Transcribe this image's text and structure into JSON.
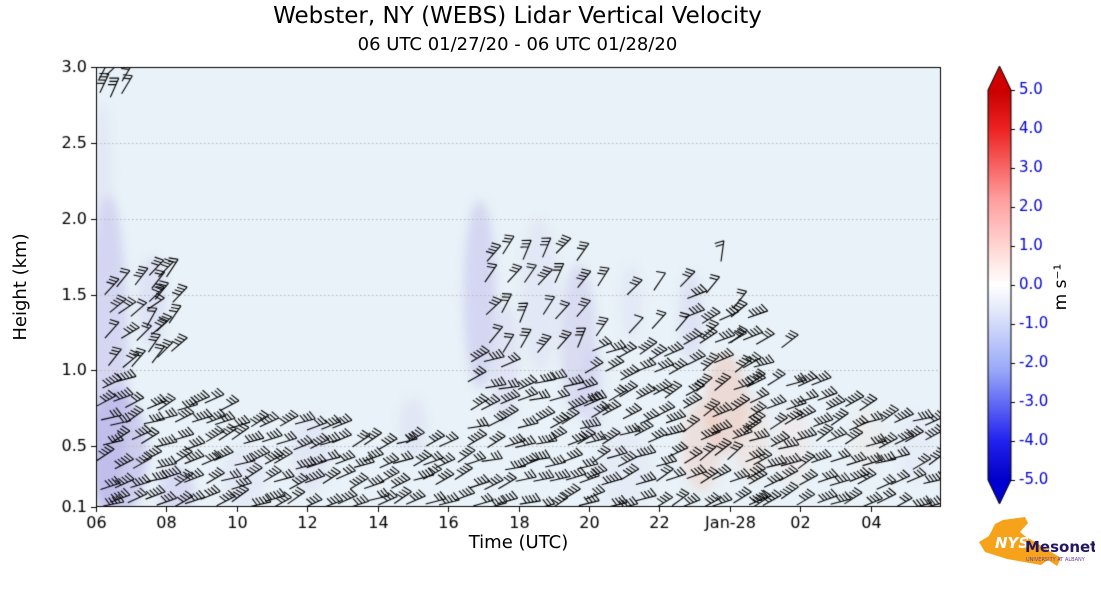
{
  "title": "Webster, NY (WEBS) Lidar Vertical Velocity",
  "subtitle": "06 UTC 01/27/20 - 06 UTC 01/28/20",
  "colors": {
    "figure_bg": "#ffffff",
    "plot_bg": "#e9f2f8",
    "grid": "#b9b9b9",
    "barb": "#000000",
    "axis": "#000000"
  },
  "chart_data": {
    "type": "heatmap",
    "field_description": "Lidar vertical velocity time-height shading (mostly between -1 and +1 m s⁻¹) with overlaid horizontal wind barbs below ~1-2 km",
    "xlabel": "Time (UTC)",
    "ylabel": "Height (km)",
    "x_ticks": [
      "06",
      "08",
      "10",
      "12",
      "14",
      "16",
      "18",
      "20",
      "22",
      "Jan-28",
      "02",
      "04"
    ],
    "x_tick_hours": [
      6,
      8,
      10,
      12,
      14,
      16,
      18,
      20,
      22,
      24,
      26,
      28
    ],
    "x_range_hours": [
      6,
      30
    ],
    "y_ticks": [
      "0.1",
      "0.5",
      "1.0",
      "1.5",
      "2.0",
      "2.5",
      "3.0"
    ],
    "y_tick_values": [
      0.1,
      0.5,
      1.0,
      1.5,
      2.0,
      2.5,
      3.0
    ],
    "ylim": [
      0.1,
      3.0
    ],
    "grid": "dotted horizontal lines at height ticks",
    "colorbar": {
      "label": "m s⁻¹",
      "ticks": [
        "5.0",
        "4.0",
        "3.0",
        "2.0",
        "1.0",
        "0.0",
        "-1.0",
        "-2.0",
        "-3.0",
        "-4.0",
        "-5.0"
      ],
      "tick_values": [
        5,
        4,
        3,
        2,
        1,
        0,
        -1,
        -2,
        -3,
        -4,
        -5
      ],
      "range": [
        -5.0,
        5.0
      ],
      "extend": "both",
      "arrow_top": "#d10000",
      "arrow_bottom": "#0000d1",
      "gradient": [
        [
          0,
          "#c80000"
        ],
        [
          0.1,
          "#ee2222"
        ],
        [
          0.28,
          "#ff9e9e"
        ],
        [
          0.44,
          "#ffe8e4"
        ],
        [
          0.5,
          "#ffffff"
        ],
        [
          0.56,
          "#e6ebfb"
        ],
        [
          0.72,
          "#98a8f8"
        ],
        [
          0.9,
          "#2222ee"
        ],
        [
          1,
          "#0000c8"
        ]
      ]
    },
    "shading_patches": [
      {
        "t": 6.35,
        "h": 1.1,
        "rt": 0.55,
        "rh": 1.05,
        "c": "#b7afe8",
        "a": 0.4
      },
      {
        "t": 6.2,
        "h": 2.2,
        "rt": 0.25,
        "rh": 0.55,
        "c": "#d3cff2",
        "a": 0.3
      },
      {
        "t": 6.6,
        "h": 0.45,
        "rt": 0.85,
        "rh": 0.42,
        "c": "#a8a0e2",
        "a": 0.45
      },
      {
        "t": 7.6,
        "h": 1.45,
        "rt": 0.4,
        "rh": 0.3,
        "c": "#c8c2ee",
        "a": 0.32
      },
      {
        "t": 8.3,
        "h": 0.2,
        "rt": 0.5,
        "rh": 0.16,
        "c": "#b7afe8",
        "a": 0.35
      },
      {
        "t": 10.2,
        "h": 0.3,
        "rt": 0.6,
        "rh": 0.2,
        "c": "#d8d4f3",
        "a": 0.28
      },
      {
        "t": 12.1,
        "h": 0.45,
        "rt": 0.55,
        "rh": 0.25,
        "c": "#d1cdf1",
        "a": 0.28
      },
      {
        "t": 15.0,
        "h": 0.62,
        "rt": 0.4,
        "rh": 0.2,
        "c": "#d1cdf1",
        "a": 0.28
      },
      {
        "t": 16.9,
        "h": 1.5,
        "rt": 0.45,
        "rh": 0.62,
        "c": "#b7afe8",
        "a": 0.4
      },
      {
        "t": 17.6,
        "h": 1.05,
        "rt": 0.4,
        "rh": 0.4,
        "c": "#cdc8f0",
        "a": 0.32
      },
      {
        "t": 18.6,
        "h": 1.5,
        "rt": 0.55,
        "rh": 0.5,
        "c": "#d3cff2",
        "a": 0.28
      },
      {
        "t": 19.7,
        "h": 1.2,
        "rt": 0.5,
        "rh": 0.5,
        "c": "#beb7ea",
        "a": 0.36
      },
      {
        "t": 20.1,
        "h": 0.85,
        "rt": 0.3,
        "rh": 0.3,
        "c": "#c8c2ee",
        "a": 0.32
      },
      {
        "t": 21.2,
        "h": 1.45,
        "rt": 0.3,
        "rh": 0.25,
        "c": "#d8d4f3",
        "a": 0.28
      },
      {
        "t": 22.9,
        "h": 1.35,
        "rt": 0.35,
        "rh": 0.3,
        "c": "#c8c2ee",
        "a": 0.3
      },
      {
        "t": 21.0,
        "h": 0.35,
        "rt": 0.8,
        "rh": 0.25,
        "c": "#dedaf5",
        "a": 0.25
      },
      {
        "t": 23.2,
        "h": 0.5,
        "rt": 0.55,
        "rh": 0.3,
        "c": "#f1c6b6",
        "a": 0.4
      },
      {
        "t": 23.9,
        "h": 0.78,
        "rt": 0.6,
        "rh": 0.33,
        "c": "#eebba8",
        "a": 0.42
      },
      {
        "t": 24.6,
        "h": 0.55,
        "rt": 0.5,
        "rh": 0.28,
        "c": "#f3cdbf",
        "a": 0.33
      },
      {
        "t": 25.8,
        "h": 0.5,
        "rt": 0.5,
        "rh": 0.25,
        "c": "#f7dcd2",
        "a": 0.28
      },
      {
        "t": 27.9,
        "h": 0.55,
        "rt": 0.45,
        "rh": 0.2,
        "c": "#f7dcd2",
        "a": 0.24
      },
      {
        "t": 29.3,
        "h": 0.5,
        "rt": 0.5,
        "rh": 0.22,
        "c": "#dedaf5",
        "a": 0.22
      }
    ],
    "barb_clusters": [
      {
        "t0": 6.15,
        "t1": 6.65,
        "dt": 0.25,
        "h0": 2.82,
        "h1": 3.0,
        "h1e": 3.0,
        "dh": 0.12,
        "ang": 55,
        "f": 3
      },
      {
        "t0": 6.3,
        "t1": 7.5,
        "dt": 0.4,
        "h0": 1.05,
        "h1": 1.6,
        "h1e": 1.6,
        "dh": 0.16,
        "ang": 40,
        "f": 3
      },
      {
        "t0": 7.5,
        "t1": 8.3,
        "dt": 0.3,
        "h0": 1.1,
        "h1": 1.8,
        "h1e": 1.8,
        "dh": 0.18,
        "ang": 50,
        "f": 3
      },
      {
        "t0": 6.1,
        "t1": 16.4,
        "dt": 0.42,
        "h0": 0.12,
        "h1": 0.92,
        "h1e": 0.5,
        "dh": 0.13,
        "ang": 24,
        "f": 4
      },
      {
        "t0": 16.6,
        "t1": 19.9,
        "dt": 0.45,
        "h0": 0.12,
        "h1": 1.05,
        "h1e": 1.0,
        "dh": 0.13,
        "ang": 20,
        "f": 4
      },
      {
        "t0": 17.1,
        "t1": 19.9,
        "dt": 0.5,
        "h0": 1.15,
        "h1": 1.85,
        "h1e": 1.8,
        "dh": 0.2,
        "ang": 55,
        "f": 3
      },
      {
        "t0": 20.0,
        "t1": 22.6,
        "dt": 0.45,
        "h0": 0.12,
        "h1": 1.15,
        "h1e": 1.1,
        "dh": 0.14,
        "ang": 24,
        "f": 4
      },
      {
        "t0": 20.3,
        "t1": 23.3,
        "dt": 0.75,
        "h0": 1.25,
        "h1": 1.6,
        "h1e": 1.55,
        "dh": 0.28,
        "ang": 45,
        "f": 2
      },
      {
        "t0": 22.7,
        "t1": 24.55,
        "dt": 0.45,
        "h0": 0.12,
        "h1": 1.5,
        "h1e": 1.35,
        "dh": 0.15,
        "ang": 30,
        "f": 4
      },
      {
        "t0": 23.75,
        "t1": 23.75,
        "dt": 1,
        "h0": 1.75,
        "h1": 1.75,
        "h1e": 1.75,
        "dh": 1,
        "ang": 70,
        "f": 3
      },
      {
        "t0": 24.6,
        "t1": 29.85,
        "dt": 0.45,
        "h0": 0.12,
        "h1": 1.05,
        "h1e": 0.62,
        "dh": 0.13,
        "ang": 24,
        "f": 4
      },
      {
        "t0": 24.1,
        "t1": 25.6,
        "dt": 0.7,
        "h0": 1.15,
        "h1": 1.45,
        "h1e": 1.4,
        "dh": 0.28,
        "ang": 40,
        "f": 2
      }
    ]
  },
  "logo": {
    "nys": "NYS",
    "mesonet": "Mesonet",
    "tagline": "UNIVERSITY AT ALBANY",
    "shape_color": "#F6A21B",
    "mesonet_color": "#231762",
    "tagline_color": "#6b3fa0"
  }
}
